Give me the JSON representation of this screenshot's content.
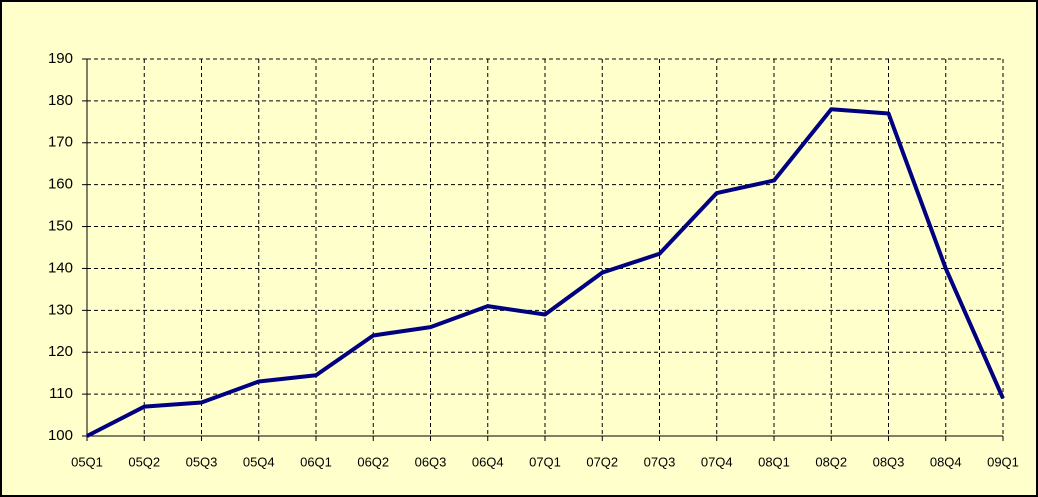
{
  "chart_data": {
    "type": "line",
    "categories": [
      "05Q1",
      "05Q2",
      "05Q3",
      "05Q4",
      "06Q1",
      "06Q2",
      "06Q3",
      "06Q4",
      "07Q1",
      "07Q2",
      "07Q3",
      "07Q4",
      "08Q1",
      "08Q2",
      "08Q3",
      "08Q4",
      "09Q1"
    ],
    "values": [
      100,
      107,
      108,
      113,
      114.5,
      124,
      126,
      131,
      129,
      139,
      143.5,
      158,
      161,
      178,
      177,
      140,
      109
    ],
    "color": "#000080",
    "ylim": [
      100,
      190
    ],
    "yticks": [
      100,
      110,
      120,
      130,
      140,
      150,
      160,
      170,
      180,
      190
    ],
    "grid": true
  }
}
